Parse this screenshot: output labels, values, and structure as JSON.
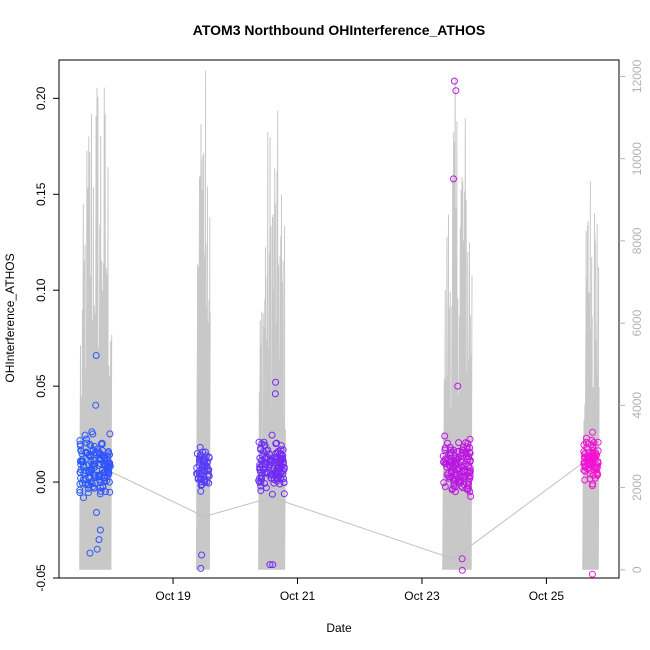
{
  "chart_data": {
    "type": "scatter",
    "title": "ATOM3 Northbound OHInterference_ATHOS",
    "xlabel": "Date",
    "ylabel": "OHInterference_ATHOS",
    "ylim": [
      -0.05,
      0.22
    ],
    "xlim": [
      "Oct 17 04:00",
      "Oct 26 04:00"
    ],
    "x_ticks": [
      "Oct 19",
      "Oct 21",
      "Oct 23",
      "Oct 25"
    ],
    "y_ticks": [
      "-0.05",
      "0.00",
      "0.05",
      "0.10",
      "0.15",
      "0.20"
    ],
    "y2_ticks": [
      "0",
      "2000",
      "4000",
      "6000",
      "8000",
      "10000",
      "12000"
    ],
    "y2lim": [
      -200,
      12400
    ],
    "grid": false,
    "legend": "none",
    "colors": {
      "series_start": "#1f5fff",
      "series_mid": "#8a1cf0",
      "series_end": "#ff10d0",
      "secondary_line": "#c8c8c8",
      "right_axis": "#b3b3b3"
    },
    "flights": [
      {
        "start": "Oct 17 12:00",
        "end": "Oct 18 00:00",
        "y_center": 0.008,
        "y_spread": 0.02,
        "y_low": -0.04,
        "y_high": 0.043,
        "outliers": [
          0.066,
          0.04,
          -0.035,
          -0.037,
          -0.025,
          -0.03
        ]
      },
      {
        "start": "Oct 19 09:00",
        "end": "Oct 19 14:00",
        "y_center": 0.007,
        "y_spread": 0.014,
        "y_low": -0.022,
        "y_high": 0.036,
        "outliers": [
          -0.045,
          -0.038
        ]
      },
      {
        "start": "Oct 20 09:00",
        "end": "Oct 20 19:00",
        "y_center": 0.008,
        "y_spread": 0.017,
        "y_low": -0.03,
        "y_high": 0.06,
        "outliers": [
          0.052,
          0.046,
          -0.043,
          -0.043
        ]
      },
      {
        "start": "Oct 23 08:00",
        "end": "Oct 23 19:00",
        "y_center": 0.008,
        "y_spread": 0.018,
        "y_low": -0.04,
        "y_high": 0.04,
        "outliers": [
          0.209,
          0.204,
          0.158,
          0.05,
          -0.046,
          -0.04
        ]
      },
      {
        "start": "Oct 25 14:00",
        "end": "Oct 25 20:00",
        "y_center": 0.012,
        "y_spread": 0.014,
        "y_low": -0.022,
        "y_high": 0.042,
        "outliers": [
          -0.048
        ]
      }
    ],
    "trend_line": {
      "x": [
        "Oct 17 20:00",
        "Oct 19 12:00",
        "Oct 20 14:00",
        "Oct 23 12:00",
        "Oct 25 16:00"
      ],
      "y": [
        0.008,
        -0.018,
        -0.008,
        -0.04,
        0.012
      ]
    },
    "secondary_series": {
      "axis": "right",
      "name": "",
      "flights": [
        {
          "start": "Oct 17 12:00",
          "end": "Oct 18 00:00",
          "low": 0,
          "peak": 12800
        },
        {
          "start": "Oct 19 09:00",
          "end": "Oct 19 14:00",
          "low": 0,
          "peak": 12600
        },
        {
          "start": "Oct 20 09:00",
          "end": "Oct 20 19:00",
          "low": 0,
          "peak": 11200
        },
        {
          "start": "Oct 23 08:00",
          "end": "Oct 23 19:00",
          "low": 0,
          "peak": 12000
        },
        {
          "start": "Oct 25 14:00",
          "end": "Oct 25 20:00",
          "low": 0,
          "peak": 10200
        }
      ]
    }
  }
}
